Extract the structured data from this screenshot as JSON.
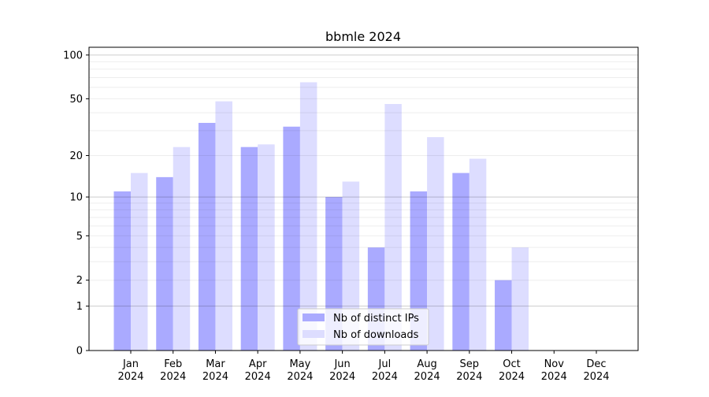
{
  "chart_data": {
    "type": "bar",
    "title": "bbmle 2024",
    "xlabel": "",
    "ylabel": "",
    "yscale": "log10(1+y)",
    "ylim": [
      0,
      113
    ],
    "yticks": [
      0,
      1,
      2,
      5,
      10,
      20,
      50,
      100
    ],
    "categories": [
      "Jan\n2024",
      "Feb\n2024",
      "Mar\n2024",
      "Apr\n2024",
      "May\n2024",
      "Jun\n2024",
      "Jul\n2024",
      "Aug\n2024",
      "Sep\n2024",
      "Oct\n2024",
      "Nov\n2024",
      "Dec\n2024"
    ],
    "series": [
      {
        "name": "Nb of distinct IPs",
        "color": "#aaaaff",
        "values": [
          11,
          14,
          34,
          23,
          32,
          10,
          4,
          11,
          15,
          2,
          0,
          0
        ]
      },
      {
        "name": "Nb of downloads",
        "color": "#ddddff",
        "values": [
          15,
          23,
          48,
          24,
          65,
          13,
          46,
          27,
          19,
          4,
          0,
          0
        ]
      }
    ],
    "grid": true,
    "legend_position": "bottom-center"
  }
}
